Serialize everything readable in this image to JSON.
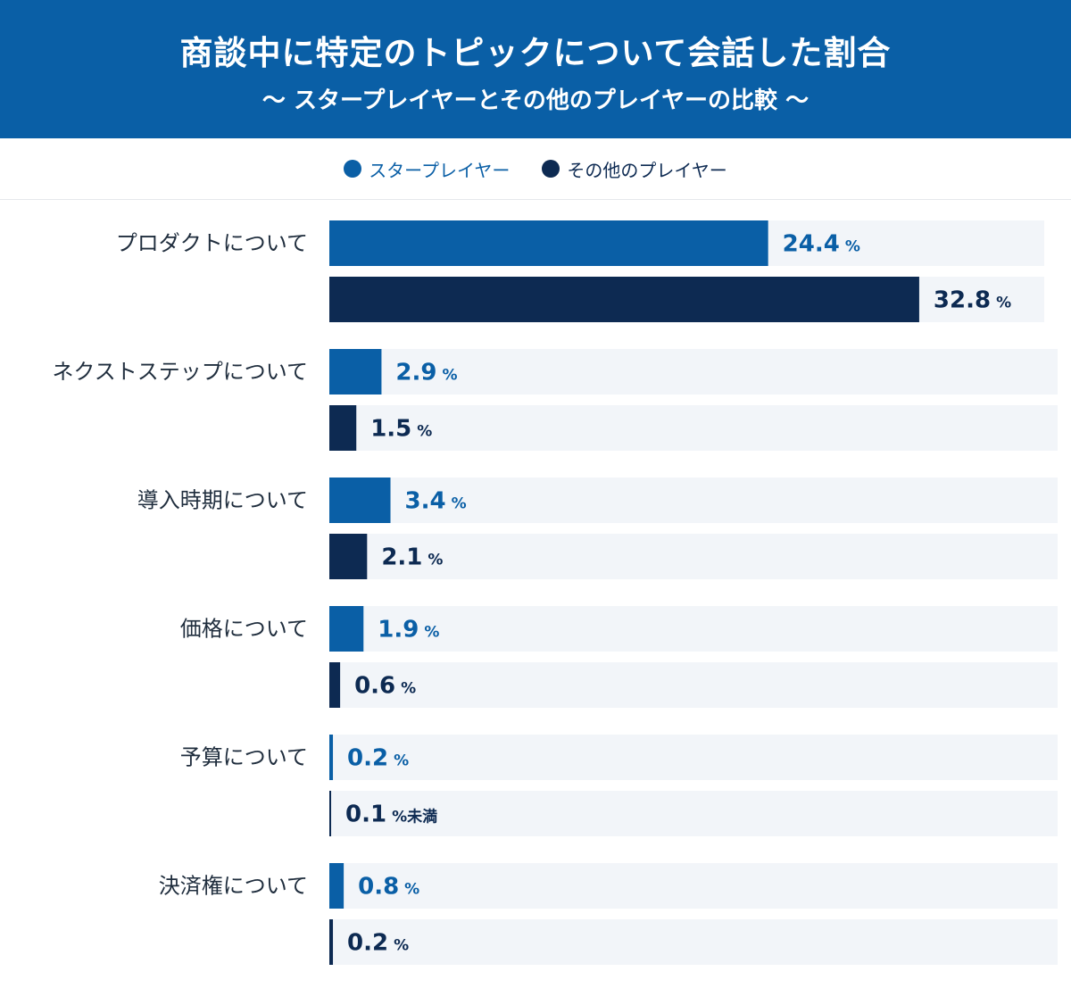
{
  "header": {
    "title": "商談中に特定のトピックについて会話した割合",
    "subtitle": "〜 スタープレイヤーとその他のプレイヤーの比較 〜"
  },
  "colors": {
    "header_bg": "#0a5fa6",
    "star": "#0a5fa6",
    "other": "#0d2a52",
    "track": "#f2f5f9",
    "label": "#1f2d3d"
  },
  "chart_data": {
    "type": "bar",
    "orientation": "horizontal",
    "categories": [
      "プロダクトについて",
      "ネクストステップについて",
      "導入時期について",
      "価格について",
      "予算について",
      "決済権について"
    ],
    "series": [
      {
        "name": "スタープレイヤー",
        "values": [
          24.4,
          2.9,
          3.4,
          1.9,
          0.2,
          0.8
        ],
        "labels": [
          "24.4",
          "2.9",
          "3.4",
          "1.9",
          "0.2",
          "0.8"
        ]
      },
      {
        "name": "その他のプレイヤー",
        "values": [
          32.8,
          1.5,
          2.1,
          0.6,
          0.1,
          0.2
        ],
        "labels": [
          "32.8",
          "1.5",
          "2.1",
          "0.6",
          "0.1",
          "0.2"
        ]
      }
    ],
    "unit": "%",
    "unit_less_than": "%未満",
    "less_than": [
      [
        false,
        false,
        false,
        false,
        false,
        false
      ],
      [
        false,
        false,
        false,
        false,
        true,
        false
      ]
    ],
    "xlim": [
      0,
      40
    ],
    "legend": "top-center",
    "grid": false
  }
}
